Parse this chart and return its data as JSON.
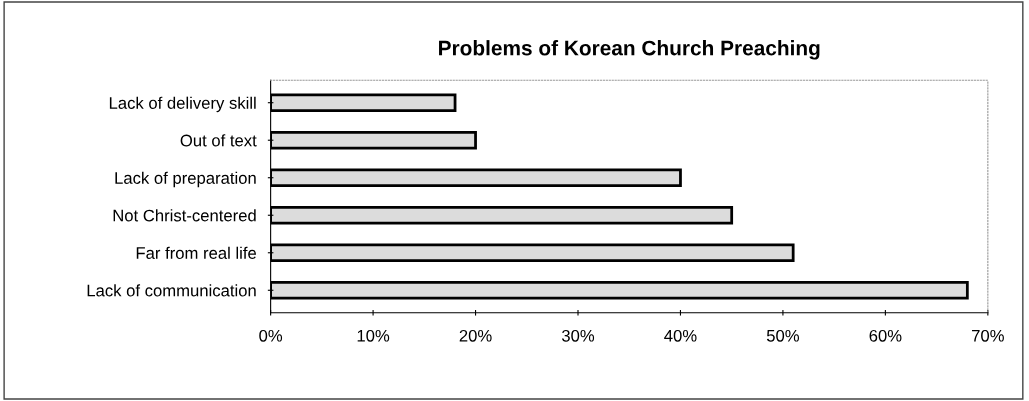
{
  "chart_data": {
    "type": "bar",
    "orientation": "horizontal",
    "title": "Problems of Korean Church Preaching",
    "categories": [
      "Lack of delivery skill",
      "Out of text",
      "Lack of preparation",
      "Not Christ-centered",
      "Far from real life",
      "Lack of communication"
    ],
    "values": [
      18,
      20,
      40,
      45,
      51,
      68
    ],
    "color": "#dcdcdc",
    "xlim": [
      0,
      70
    ],
    "xticks": [
      {
        "value": 0,
        "label": "0%"
      },
      {
        "value": 10,
        "label": "10%"
      },
      {
        "value": 20,
        "label": "20%"
      },
      {
        "value": 30,
        "label": "30%"
      },
      {
        "value": 40,
        "label": "40%"
      },
      {
        "value": 50,
        "label": "50%"
      },
      {
        "value": 60,
        "label": "60%"
      },
      {
        "value": 70,
        "label": "70%"
      }
    ],
    "grid": false,
    "legend": false
  }
}
